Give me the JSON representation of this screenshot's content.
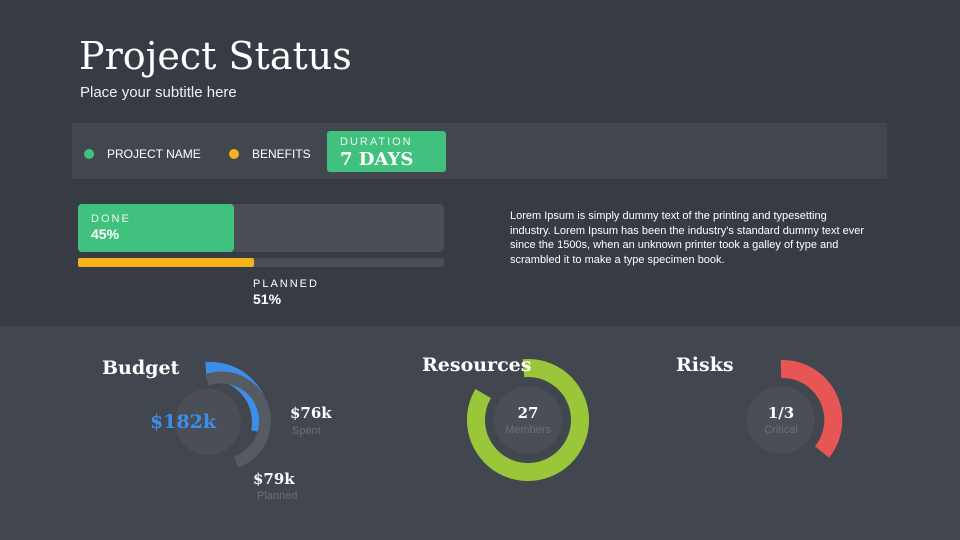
{
  "header": {
    "title": "Project Status",
    "subtitle": "Place your subtitle here"
  },
  "legend": {
    "items": [
      {
        "label": "PROJECT NAME",
        "color": "#41c17e"
      },
      {
        "label": "BENEFITS",
        "color": "#f5b21b"
      }
    ],
    "duration_label": "DURATION",
    "duration_value": "7 DAYS"
  },
  "progress": {
    "done_label": "DONE",
    "done_value": "45%",
    "done_fraction": 0.45,
    "planned_label": "PLANNED",
    "planned_value": "51%",
    "planned_fraction": 0.51
  },
  "description": "Lorem Ipsum is simply dummy text of the printing and typesetting industry. Lorem Ipsum has been the industry's standard dummy text ever since the 1500s, when an unknown printer took a galley of type and scrambled it to make a type specimen book.",
  "budget": {
    "title": "Budget",
    "total": "$182k",
    "spent_value": "$76k",
    "spent_label": "Spent",
    "planned_value": "$79k",
    "planned_label": "Planned",
    "color": "#3d8ee9"
  },
  "resources": {
    "title": "Resources",
    "value": "27",
    "label": "Members",
    "color": "#9ac73a"
  },
  "risks": {
    "title": "Risks",
    "value": "1/3",
    "label": "Critical",
    "color": "#e85555"
  },
  "colors": {
    "green": "#41c17e",
    "yellow": "#f5b21b",
    "blue": "#3d8ee9",
    "lime": "#9ac73a",
    "red": "#e85555"
  }
}
